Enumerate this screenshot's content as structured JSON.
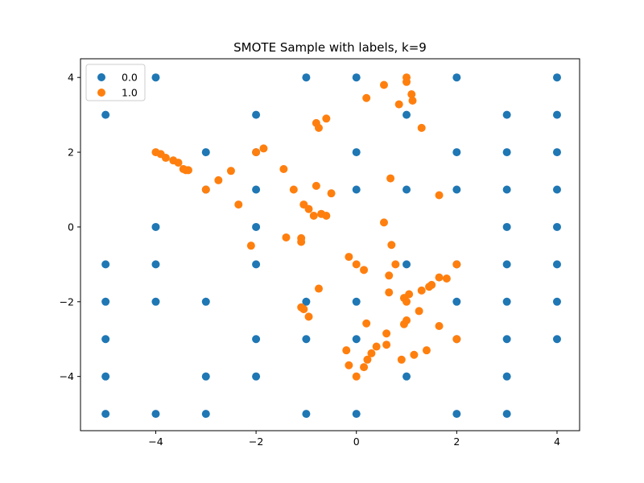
{
  "chart_data": {
    "type": "scatter",
    "title": "SMOTE Sample with labels, k=9",
    "xlabel": "",
    "ylabel": "",
    "xlim": [
      -5.5,
      4.45
    ],
    "ylim": [
      -5.45,
      4.5
    ],
    "xticks": [
      -4,
      -2,
      0,
      2,
      4
    ],
    "yticks": [
      -4,
      -2,
      0,
      2,
      4
    ],
    "xtick_labels": [
      "−4",
      "−2",
      "0",
      "2",
      "4"
    ],
    "ytick_labels": [
      "−4",
      "−2",
      "0",
      "2",
      "4"
    ],
    "grid": false,
    "legend_position": "top-left",
    "series": [
      {
        "name": "0.0",
        "color": "#1f77b4",
        "points": [
          [
            -4,
            4
          ],
          [
            -1,
            4
          ],
          [
            0,
            4
          ],
          [
            2,
            4
          ],
          [
            4,
            4
          ],
          [
            -5,
            3
          ],
          [
            -2,
            3
          ],
          [
            1,
            3
          ],
          [
            3,
            3
          ],
          [
            4,
            3
          ],
          [
            -3,
            2
          ],
          [
            -2,
            2
          ],
          [
            0,
            2
          ],
          [
            2,
            2
          ],
          [
            3,
            2
          ],
          [
            4,
            2
          ],
          [
            -3,
            1
          ],
          [
            -2,
            1
          ],
          [
            0,
            1
          ],
          [
            1,
            1
          ],
          [
            2,
            1
          ],
          [
            3,
            1
          ],
          [
            4,
            1
          ],
          [
            -4,
            0
          ],
          [
            -2,
            0
          ],
          [
            3,
            0
          ],
          [
            4,
            0
          ],
          [
            -5,
            -1
          ],
          [
            -4,
            -1
          ],
          [
            -2,
            -1
          ],
          [
            1,
            -1
          ],
          [
            2,
            -1
          ],
          [
            3,
            -1
          ],
          [
            4,
            -1
          ],
          [
            -5,
            -2
          ],
          [
            -4,
            -2
          ],
          [
            -3,
            -2
          ],
          [
            -1,
            -2
          ],
          [
            0,
            -2
          ],
          [
            2,
            -2
          ],
          [
            3,
            -2
          ],
          [
            4,
            -2
          ],
          [
            -5,
            -3
          ],
          [
            -2,
            -3
          ],
          [
            -1,
            -3
          ],
          [
            0,
            -3
          ],
          [
            2,
            -3
          ],
          [
            3,
            -3
          ],
          [
            4,
            -3
          ],
          [
            -5,
            -4
          ],
          [
            -3,
            -4
          ],
          [
            -2,
            -4
          ],
          [
            1,
            -4
          ],
          [
            3,
            -4
          ],
          [
            -5,
            -5
          ],
          [
            -4,
            -5
          ],
          [
            -3,
            -5
          ],
          [
            -1,
            -5
          ],
          [
            0,
            -5
          ],
          [
            2,
            -5
          ],
          [
            3,
            -5
          ]
        ]
      },
      {
        "name": "1.0",
        "color": "#ff7f0e",
        "points": [
          [
            -4.0,
            2.0
          ],
          [
            -3.9,
            1.95
          ],
          [
            -3.8,
            1.85
          ],
          [
            -3.65,
            1.78
          ],
          [
            -3.55,
            1.72
          ],
          [
            -3.45,
            1.55
          ],
          [
            -3.4,
            1.52
          ],
          [
            -3.35,
            1.52
          ],
          [
            -3.0,
            1.0
          ],
          [
            -2.75,
            1.25
          ],
          [
            -2.5,
            1.5
          ],
          [
            -2.35,
            0.6
          ],
          [
            -2.0,
            2.0
          ],
          [
            -1.85,
            2.1
          ],
          [
            -2.1,
            -0.5
          ],
          [
            -1.45,
            1.55
          ],
          [
            -1.4,
            -0.28
          ],
          [
            -1.25,
            1.0
          ],
          [
            -1.1,
            -0.3
          ],
          [
            -1.1,
            -0.4
          ],
          [
            -1.05,
            0.6
          ],
          [
            -0.95,
            0.48
          ],
          [
            -0.85,
            0.3
          ],
          [
            -0.8,
            1.1
          ],
          [
            -0.7,
            0.35
          ],
          [
            -0.6,
            0.3
          ],
          [
            -0.5,
            0.9
          ],
          [
            -0.8,
            2.78
          ],
          [
            -0.75,
            2.65
          ],
          [
            -0.6,
            2.9
          ],
          [
            -1.1,
            -2.15
          ],
          [
            -1.05,
            -2.2
          ],
          [
            -0.95,
            -2.4
          ],
          [
            -0.75,
            -1.65
          ],
          [
            0.2,
            3.45
          ],
          [
            0.55,
            3.8
          ],
          [
            0.85,
            3.28
          ],
          [
            1.0,
            4.0
          ],
          [
            1.0,
            3.88
          ],
          [
            1.1,
            3.55
          ],
          [
            1.12,
            3.38
          ],
          [
            1.3,
            2.65
          ],
          [
            0.68,
            1.3
          ],
          [
            0.55,
            0.12
          ],
          [
            0.7,
            -0.48
          ],
          [
            -0.15,
            -0.8
          ],
          [
            0.0,
            -1.0
          ],
          [
            0.15,
            -1.15
          ],
          [
            0.65,
            -1.3
          ],
          [
            0.78,
            -1.0
          ],
          [
            0.65,
            -1.75
          ],
          [
            0.95,
            -1.9
          ],
          [
            1.0,
            -2.0
          ],
          [
            1.05,
            -1.8
          ],
          [
            1.0,
            -2.5
          ],
          [
            0.95,
            -2.6
          ],
          [
            1.25,
            -2.25
          ],
          [
            1.3,
            -1.7
          ],
          [
            1.5,
            -1.55
          ],
          [
            1.45,
            -1.6
          ],
          [
            1.65,
            -1.35
          ],
          [
            1.8,
            -1.38
          ],
          [
            2.0,
            -1.0
          ],
          [
            1.65,
            0.85
          ],
          [
            1.65,
            -2.65
          ],
          [
            2.0,
            -3.0
          ],
          [
            0.2,
            -2.58
          ],
          [
            0.6,
            -2.85
          ],
          [
            0.6,
            -3.15
          ],
          [
            0.4,
            -3.2
          ],
          [
            0.3,
            -3.38
          ],
          [
            0.22,
            -3.55
          ],
          [
            0.15,
            -3.75
          ],
          [
            0.9,
            -3.55
          ],
          [
            1.15,
            -3.42
          ],
          [
            1.4,
            -3.3
          ],
          [
            -0.2,
            -3.3
          ],
          [
            -0.15,
            -3.7
          ],
          [
            0.0,
            -4.0
          ]
        ]
      }
    ]
  }
}
